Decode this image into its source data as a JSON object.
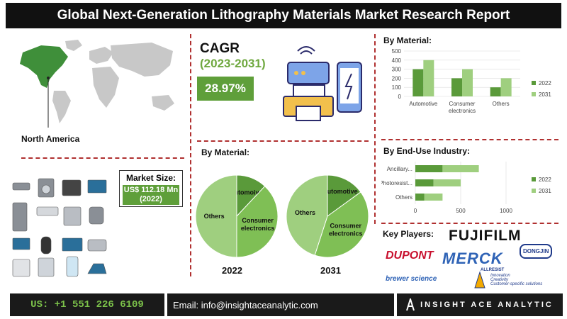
{
  "title": "Global Next-Generation Lithography Materials Market Research Report",
  "region_label": "North America",
  "cagr": {
    "label": "CAGR",
    "period": "(2023-2031)",
    "value": "28.97%"
  },
  "market_size": {
    "label": "Market Size:",
    "value": "US$ 112.18 Mn (2022)"
  },
  "pie_section": {
    "heading": "By Material:",
    "label_2022": "2022",
    "label_2031": "2031"
  },
  "bar_material": {
    "heading": "By Material:"
  },
  "bar_enduse": {
    "heading": "By End-Use Industry:"
  },
  "key_players": {
    "heading": "Key Players:",
    "logos": [
      "FUJIFILM",
      "DUPONT",
      "MERCK",
      "DONGJIN",
      "brewer science",
      "ALLRESIST"
    ],
    "allresist_tagline": [
      "Innovation",
      "Creativity",
      "Customer-specific solutions"
    ]
  },
  "footer": {
    "phone": "US: +1 551 226 6109",
    "email": "Email: info@insightaceanalytic.com",
    "brand": "INSIGHT ACE ANALYTIC"
  },
  "colors": {
    "dark_green": "#5a9a3a",
    "light_green": "#9fcf7f",
    "mid_green": "#7fbf55",
    "divider": "#b03030"
  },
  "chart_data": [
    {
      "type": "bar",
      "title": "By Material:",
      "categories": [
        "Automotive",
        "Consumer electronics",
        "Others"
      ],
      "series": [
        {
          "name": "2022",
          "values": [
            300,
            200,
            100
          ]
        },
        {
          "name": "2031",
          "values": [
            400,
            300,
            200
          ]
        }
      ],
      "ylim": [
        0,
        500
      ],
      "yticks": [
        0,
        100,
        200,
        300,
        400,
        500
      ],
      "legend": "right",
      "grid": true
    },
    {
      "type": "bar",
      "orientation": "horizontal",
      "title": "By End-Use Industry:",
      "categories": [
        "Ancillary...",
        "Photoresist...",
        "Others"
      ],
      "series": [
        {
          "name": "2022",
          "values": [
            300,
            200,
            100
          ]
        },
        {
          "name": "2031",
          "values": [
            400,
            300,
            200
          ]
        }
      ],
      "xlim": [
        0,
        1000
      ],
      "xticks": [
        0,
        500,
        1000
      ],
      "legend": "right",
      "grid": true
    },
    {
      "type": "pie",
      "title": "2022",
      "slices": [
        {
          "label": "Automoive",
          "value": 12
        },
        {
          "label": "Consumer electronics",
          "value": 38
        },
        {
          "label": "Others",
          "value": 50
        }
      ]
    },
    {
      "type": "pie",
      "title": "2031",
      "slices": [
        {
          "label": "Automotive",
          "value": 15
        },
        {
          "label": "Consumer electronics",
          "value": 40
        },
        {
          "label": "Others",
          "value": 45
        }
      ]
    }
  ]
}
